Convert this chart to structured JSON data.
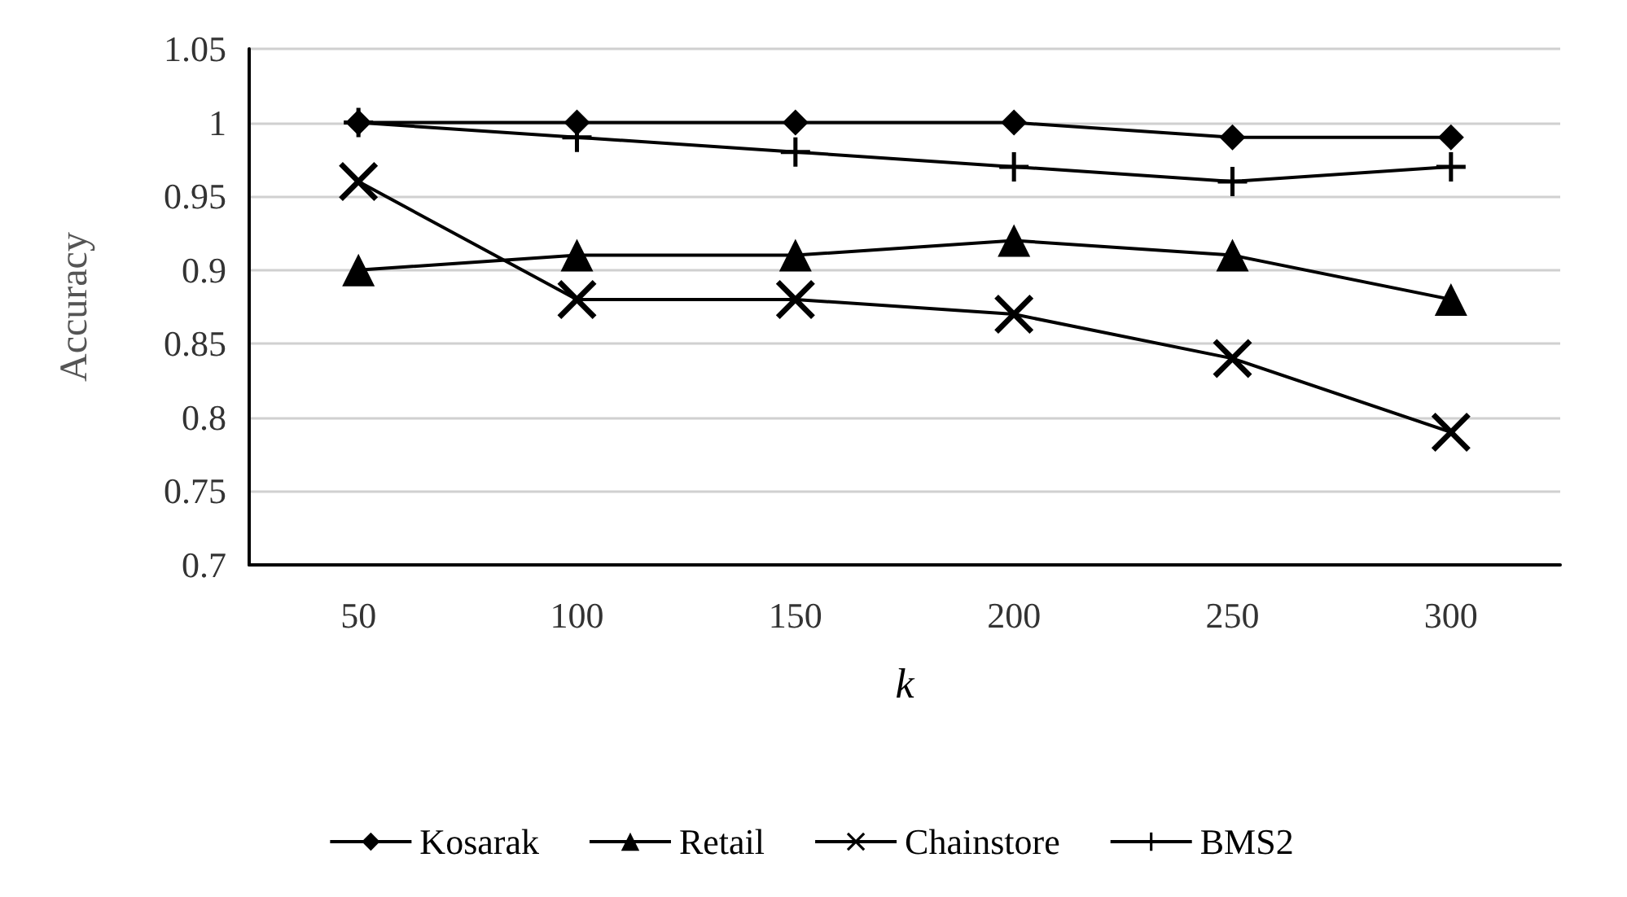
{
  "chart_data": {
    "type": "line",
    "xlabel": "k",
    "ylabel": "Accuracy",
    "categories": [
      "50",
      "100",
      "150",
      "200",
      "250",
      "300"
    ],
    "series": [
      {
        "name": "Kosarak",
        "color": "#000000",
        "marker": "diamond",
        "values": [
          1,
          1,
          1,
          1,
          0.99,
          0.99
        ]
      },
      {
        "name": "Retail",
        "color": "#000000",
        "marker": "triangle",
        "values": [
          0.9,
          0.91,
          0.91,
          0.92,
          0.91,
          0.88
        ]
      },
      {
        "name": "Chainstore",
        "color": "#000000",
        "marker": "cross",
        "values": [
          0.96,
          0.88,
          0.88,
          0.87,
          0.84,
          0.79
        ]
      },
      {
        "name": "BMS2",
        "color": "#000000",
        "marker": "plus",
        "values": [
          1,
          0.99,
          0.98,
          0.97,
          0.96,
          0.97
        ]
      }
    ],
    "ylim": [
      0.7,
      1.05
    ],
    "yticks": [
      0.7,
      0.75,
      0.8,
      0.85,
      0.9,
      0.95,
      1,
      1.05
    ],
    "grid": "y",
    "legend": "bottom",
    "line_style": "solid"
  }
}
